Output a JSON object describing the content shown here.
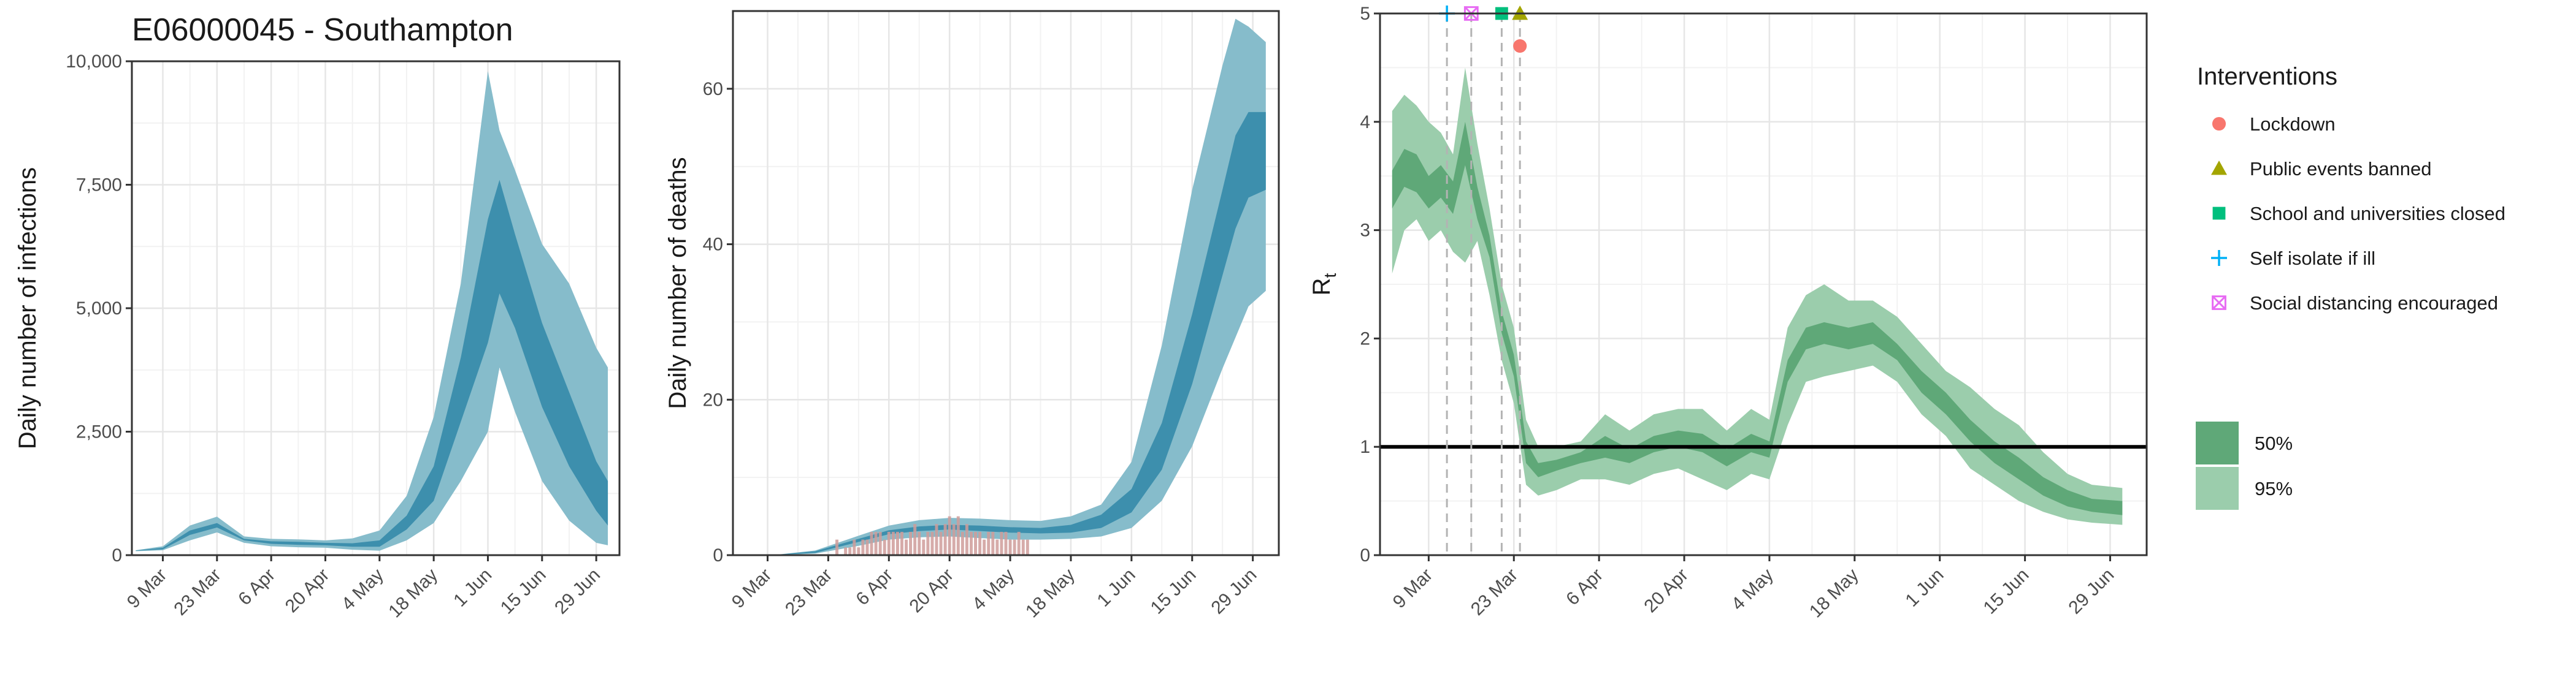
{
  "figure": {
    "title": "E06000045 - Southampton"
  },
  "colors": {
    "infections_95": "#86bccb",
    "infections_50": "#3d8fad",
    "deaths_observed": "#cf9c9a",
    "rt_95": "#9bcdac",
    "rt_50": "#5fa878",
    "lockdown": "#f8766d",
    "public_events": "#a3a500",
    "schools": "#00bf7d",
    "self_isolate": "#00b0f6",
    "social_distancing": "#e76bf3"
  },
  "chart_data": [
    {
      "type": "area",
      "panel": "infections",
      "ylabel": "Daily number of infections",
      "ylim": [
        0,
        10000
      ],
      "yticks": [
        0,
        2500,
        5000,
        7500,
        10000
      ],
      "ytick_labels": [
        "0",
        "2,500",
        "5,000",
        "7,500",
        "10,000"
      ],
      "xlim": [
        "2020-03-01",
        "2020-07-05"
      ],
      "xtick_labels": [
        "9 Mar",
        "23 Mar",
        "6 Apr",
        "20 Apr",
        "4 May",
        "18 May",
        "1 Jun",
        "15 Jun",
        "29 Jun"
      ],
      "grid": true,
      "series": [
        {
          "band": "95%",
          "x": [
            "2020-03-02",
            "2020-03-09",
            "2020-03-16",
            "2020-03-23",
            "2020-03-30",
            "2020-04-06",
            "2020-04-13",
            "2020-04-20",
            "2020-04-27",
            "2020-05-04",
            "2020-05-11",
            "2020-05-18",
            "2020-05-25",
            "2020-06-01",
            "2020-06-04",
            "2020-06-08",
            "2020-06-15",
            "2020-06-22",
            "2020-06-29",
            "2020-07-02"
          ],
          "lower": [
            80,
            100,
            300,
            460,
            250,
            180,
            160,
            150,
            110,
            90,
            300,
            650,
            1500,
            2500,
            3800,
            2900,
            1500,
            700,
            250,
            200
          ],
          "upper": [
            100,
            180,
            600,
            780,
            380,
            330,
            320,
            300,
            340,
            500,
            1200,
            2800,
            5500,
            9800,
            8600,
            7800,
            6300,
            5500,
            4200,
            3800
          ]
        },
        {
          "band": "50%",
          "x": [
            "2020-03-02",
            "2020-03-09",
            "2020-03-16",
            "2020-03-23",
            "2020-03-30",
            "2020-04-06",
            "2020-04-13",
            "2020-04-20",
            "2020-04-27",
            "2020-05-04",
            "2020-05-11",
            "2020-05-18",
            "2020-05-25",
            "2020-06-01",
            "2020-06-04",
            "2020-06-08",
            "2020-06-15",
            "2020-06-22",
            "2020-06-29",
            "2020-07-02"
          ],
          "lower": [
            88,
            120,
            410,
            560,
            300,
            230,
            210,
            200,
            170,
            170,
            520,
            1100,
            2700,
            4300,
            5300,
            4600,
            3000,
            1800,
            900,
            600
          ],
          "upper": [
            95,
            150,
            500,
            650,
            330,
            280,
            270,
            250,
            240,
            300,
            800,
            1800,
            4000,
            6800,
            7600,
            6500,
            4700,
            3300,
            1900,
            1500
          ]
        }
      ]
    },
    {
      "type": "area",
      "panel": "deaths",
      "ylabel": "Daily number of deaths",
      "ylim": [
        0,
        70
      ],
      "yticks": [
        0,
        20,
        40,
        60
      ],
      "ytick_labels": [
        "0",
        "20",
        "40",
        "60"
      ],
      "xlim": [
        "2020-03-01",
        "2020-07-05"
      ],
      "xtick_labels": [
        "9 Mar",
        "23 Mar",
        "6 Apr",
        "20 Apr",
        "4 May",
        "18 May",
        "1 Jun",
        "15 Jun",
        "29 Jun"
      ],
      "grid": true,
      "series": [
        {
          "band": "95%",
          "x": [
            "2020-03-10",
            "2020-03-20",
            "2020-03-30",
            "2020-04-06",
            "2020-04-13",
            "2020-04-20",
            "2020-04-27",
            "2020-05-04",
            "2020-05-11",
            "2020-05-18",
            "2020-05-25",
            "2020-06-01",
            "2020-06-08",
            "2020-06-15",
            "2020-06-22",
            "2020-06-25",
            "2020-06-28",
            "2020-07-02"
          ],
          "lower": [
            0,
            0.2,
            1.2,
            2.0,
            2.3,
            2.4,
            2.2,
            2.0,
            2.0,
            2.1,
            2.4,
            3.5,
            7,
            14,
            24,
            28,
            32,
            34
          ],
          "upper": [
            0,
            0.6,
            2.5,
            3.8,
            4.5,
            4.8,
            4.7,
            4.5,
            4.4,
            5,
            6.5,
            12,
            27,
            47,
            63,
            69,
            68,
            66
          ]
        },
        {
          "band": "50%",
          "x": [
            "2020-03-10",
            "2020-03-20",
            "2020-03-30",
            "2020-04-06",
            "2020-04-13",
            "2020-04-20",
            "2020-04-27",
            "2020-05-04",
            "2020-05-11",
            "2020-05-18",
            "2020-05-25",
            "2020-06-01",
            "2020-06-08",
            "2020-06-15",
            "2020-06-22",
            "2020-06-25",
            "2020-06-28",
            "2020-07-02"
          ],
          "lower": [
            0,
            0.3,
            1.7,
            2.7,
            3.1,
            3.3,
            3.1,
            2.9,
            2.8,
            2.9,
            3.5,
            5.5,
            11,
            22,
            36,
            42,
            46,
            47
          ],
          "upper": [
            0,
            0.5,
            2.1,
            3.2,
            3.7,
            3.9,
            3.8,
            3.6,
            3.5,
            3.9,
            5.2,
            8.5,
            17,
            31,
            47,
            54,
            57,
            57
          ]
        },
        {
          "name": "observed deaths",
          "kind": "bars",
          "x": [
            "2020-03-25",
            "2020-03-27",
            "2020-03-28",
            "2020-03-29",
            "2020-03-30",
            "2020-03-31",
            "2020-04-01",
            "2020-04-02",
            "2020-04-03",
            "2020-04-04",
            "2020-04-05",
            "2020-04-06",
            "2020-04-07",
            "2020-04-08",
            "2020-04-09",
            "2020-04-10",
            "2020-04-11",
            "2020-04-12",
            "2020-04-13",
            "2020-04-14",
            "2020-04-15",
            "2020-04-16",
            "2020-04-17",
            "2020-04-18",
            "2020-04-19",
            "2020-04-20",
            "2020-04-21",
            "2020-04-22",
            "2020-04-23",
            "2020-04-24",
            "2020-04-25",
            "2020-04-26",
            "2020-04-27",
            "2020-04-28",
            "2020-04-29",
            "2020-04-30",
            "2020-05-01",
            "2020-05-02",
            "2020-05-03",
            "2020-05-04",
            "2020-05-05",
            "2020-05-06",
            "2020-05-07",
            "2020-05-08"
          ],
          "values": [
            2,
            1,
            1,
            2,
            1,
            2,
            2,
            3,
            3,
            3,
            2,
            3,
            3,
            3,
            3,
            2,
            3,
            4,
            3,
            2,
            3,
            3,
            4,
            3,
            4,
            5,
            4,
            5,
            3,
            4,
            3,
            3,
            3,
            2,
            3,
            3,
            2,
            3,
            3,
            2,
            2,
            3,
            2,
            2
          ]
        }
      ]
    },
    {
      "type": "line",
      "panel": "rt",
      "ylabel": "R",
      "ylabel_subscript": "t",
      "ylim": [
        0,
        5
      ],
      "yticks": [
        0,
        1,
        2,
        3,
        4,
        5
      ],
      "ytick_labels": [
        "0",
        "1",
        "2",
        "3",
        "4",
        "5"
      ],
      "xlim": [
        "2020-03-01",
        "2020-07-05"
      ],
      "xtick_labels": [
        "9 Mar",
        "23 Mar",
        "6 Apr",
        "20 Apr",
        "4 May",
        "18 May",
        "1 Jun",
        "15 Jun",
        "29 Jun"
      ],
      "grid": true,
      "reference_line": 1,
      "series": [
        {
          "band": "95%",
          "x": [
            "2020-03-03",
            "2020-03-05",
            "2020-03-07",
            "2020-03-09",
            "2020-03-11",
            "2020-03-13",
            "2020-03-15",
            "2020-03-17",
            "2020-03-19",
            "2020-03-21",
            "2020-03-23",
            "2020-03-25",
            "2020-03-27",
            "2020-03-30",
            "2020-04-03",
            "2020-04-07",
            "2020-04-11",
            "2020-04-15",
            "2020-04-19",
            "2020-04-23",
            "2020-04-27",
            "2020-05-01",
            "2020-05-04",
            "2020-05-07",
            "2020-05-10",
            "2020-05-13",
            "2020-05-17",
            "2020-05-21",
            "2020-05-25",
            "2020-05-29",
            "2020-06-02",
            "2020-06-06",
            "2020-06-10",
            "2020-06-14",
            "2020-06-18",
            "2020-06-22",
            "2020-06-26",
            "2020-07-01"
          ],
          "lower": [
            2.6,
            3.0,
            3.1,
            2.9,
            3.0,
            2.8,
            2.7,
            2.9,
            2.4,
            1.8,
            1.4,
            0.65,
            0.55,
            0.6,
            0.7,
            0.7,
            0.65,
            0.75,
            0.8,
            0.7,
            0.6,
            0.75,
            0.7,
            1.2,
            1.6,
            1.65,
            1.7,
            1.75,
            1.6,
            1.3,
            1.1,
            0.8,
            0.65,
            0.5,
            0.4,
            0.33,
            0.3,
            0.28
          ],
          "upper": [
            4.1,
            4.25,
            4.15,
            4.0,
            3.9,
            3.7,
            4.5,
            3.8,
            3.2,
            2.5,
            2.1,
            1.25,
            1.0,
            1.0,
            1.05,
            1.3,
            1.15,
            1.3,
            1.35,
            1.35,
            1.15,
            1.35,
            1.25,
            2.1,
            2.4,
            2.5,
            2.35,
            2.35,
            2.2,
            1.95,
            1.7,
            1.55,
            1.35,
            1.2,
            0.95,
            0.75,
            0.65,
            0.62
          ]
        },
        {
          "band": "50%",
          "x": [
            "2020-03-03",
            "2020-03-05",
            "2020-03-07",
            "2020-03-09",
            "2020-03-11",
            "2020-03-13",
            "2020-03-15",
            "2020-03-17",
            "2020-03-19",
            "2020-03-21",
            "2020-03-23",
            "2020-03-25",
            "2020-03-27",
            "2020-03-30",
            "2020-04-03",
            "2020-04-07",
            "2020-04-11",
            "2020-04-15",
            "2020-04-19",
            "2020-04-23",
            "2020-04-27",
            "2020-05-01",
            "2020-05-04",
            "2020-05-07",
            "2020-05-10",
            "2020-05-13",
            "2020-05-17",
            "2020-05-21",
            "2020-05-25",
            "2020-05-29",
            "2020-06-02",
            "2020-06-06",
            "2020-06-10",
            "2020-06-14",
            "2020-06-18",
            "2020-06-22",
            "2020-06-26",
            "2020-07-01"
          ],
          "lower": [
            3.2,
            3.4,
            3.35,
            3.2,
            3.3,
            3.15,
            3.6,
            3.1,
            2.75,
            2.05,
            1.65,
            0.85,
            0.72,
            0.78,
            0.85,
            0.9,
            0.85,
            0.95,
            1.0,
            0.95,
            0.82,
            0.95,
            0.9,
            1.6,
            1.9,
            1.95,
            1.9,
            1.95,
            1.8,
            1.5,
            1.3,
            1.05,
            0.85,
            0.7,
            0.55,
            0.45,
            0.4,
            0.37
          ],
          "upper": [
            3.55,
            3.75,
            3.7,
            3.5,
            3.6,
            3.45,
            4.0,
            3.4,
            2.95,
            2.25,
            1.85,
            1.05,
            0.85,
            0.88,
            0.95,
            1.1,
            0.98,
            1.1,
            1.15,
            1.12,
            0.98,
            1.12,
            1.05,
            1.8,
            2.1,
            2.15,
            2.1,
            2.15,
            1.95,
            1.7,
            1.5,
            1.25,
            1.05,
            0.9,
            0.72,
            0.6,
            0.52,
            0.5
          ]
        }
      ],
      "interventions": [
        {
          "name": "Self isolate if ill",
          "date": "2020-03-12",
          "y": 5.0,
          "shape": "plus"
        },
        {
          "name": "Social distancing encouraged",
          "date": "2020-03-16",
          "y": 5.0,
          "shape": "boxx"
        },
        {
          "name": "School and universities closed",
          "date": "2020-03-21",
          "y": 5.0,
          "shape": "square"
        },
        {
          "name": "Public events banned",
          "date": "2020-03-24",
          "y": 5.0,
          "shape": "triangle"
        },
        {
          "name": "Lockdown",
          "date": "2020-03-24",
          "y": 4.7,
          "shape": "circle"
        }
      ]
    }
  ],
  "legend": {
    "title": "Interventions",
    "items": [
      {
        "label": "Lockdown",
        "shape": "circle",
        "color": "#f8766d"
      },
      {
        "label": "Public events banned",
        "shape": "triangle",
        "color": "#a3a500"
      },
      {
        "label": "School and universities closed",
        "shape": "square",
        "color": "#00bf7d"
      },
      {
        "label": "Self isolate if ill",
        "shape": "plus",
        "color": "#00b0f6"
      },
      {
        "label": "Social distancing encouraged",
        "shape": "boxx",
        "color": "#e76bf3"
      }
    ],
    "bands": [
      {
        "label": "50%",
        "color": "#5fa878"
      },
      {
        "label": "95%",
        "color": "#9bcdac"
      }
    ]
  }
}
